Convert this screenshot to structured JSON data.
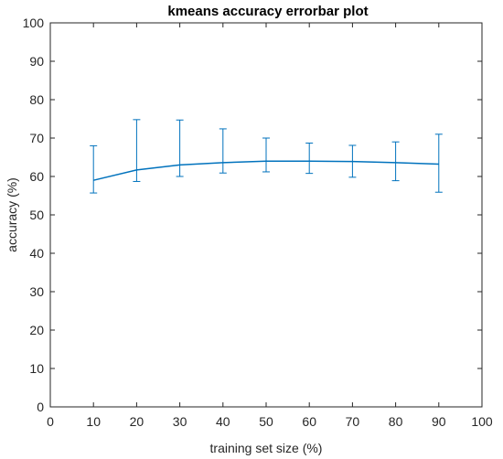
{
  "chart_data": {
    "type": "line",
    "title": "kmeans accuracy errorbar plot",
    "xlabel": "training set size (%)",
    "ylabel": "accuracy  (%)",
    "xlim": [
      0,
      100
    ],
    "ylim": [
      0,
      100
    ],
    "xticks": [
      0,
      10,
      20,
      30,
      40,
      50,
      60,
      70,
      80,
      90,
      100
    ],
    "yticks": [
      0,
      10,
      20,
      30,
      40,
      50,
      60,
      70,
      80,
      90,
      100
    ],
    "grid": false,
    "series": [
      {
        "color": "#0072BD",
        "x": [
          10,
          20,
          30,
          40,
          50,
          60,
          70,
          80,
          90
        ],
        "y": [
          59,
          61.7,
          63,
          63.6,
          64,
          64,
          63.9,
          63.6,
          63.2
        ],
        "err_lower": [
          55.7,
          58.7,
          60,
          60.9,
          61.2,
          60.8,
          59.8,
          58.9,
          55.9
        ],
        "err_upper": [
          68,
          74.8,
          74.7,
          72.4,
          70,
          68.7,
          68.1,
          69,
          71
        ]
      }
    ]
  }
}
